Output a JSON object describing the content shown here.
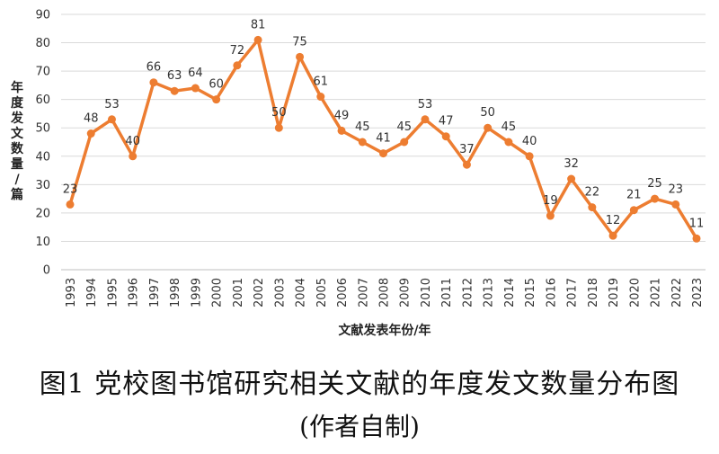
{
  "chart_data": {
    "type": "line",
    "x": [
      "1993",
      "1994",
      "1995",
      "1996",
      "1997",
      "1998",
      "1999",
      "2000",
      "2001",
      "2002",
      "2003",
      "2004",
      "2005",
      "2006",
      "2007",
      "2008",
      "2009",
      "2010",
      "2011",
      "2012",
      "2013",
      "2014",
      "2015",
      "2016",
      "2017",
      "2018",
      "2019",
      "2020",
      "2021",
      "2022",
      "2023"
    ],
    "values": [
      23,
      48,
      53,
      40,
      66,
      63,
      64,
      60,
      72,
      81,
      50,
      75,
      61,
      49,
      45,
      41,
      45,
      53,
      47,
      37,
      50,
      45,
      40,
      19,
      32,
      22,
      12,
      21,
      25,
      23,
      11
    ],
    "ylim": [
      0,
      90
    ],
    "yticks": [
      0,
      10,
      20,
      30,
      40,
      50,
      60,
      70,
      80,
      90
    ],
    "xlabel": "文献发表年份/年",
    "ylabel": "年度发文数量/篇",
    "grid": true,
    "data_labels": true,
    "color": "#ED7D31"
  },
  "caption": {
    "title": "图1 党校图书馆研究相关文献的年度发文数量分布图",
    "subtitle": "(作者自制)"
  }
}
